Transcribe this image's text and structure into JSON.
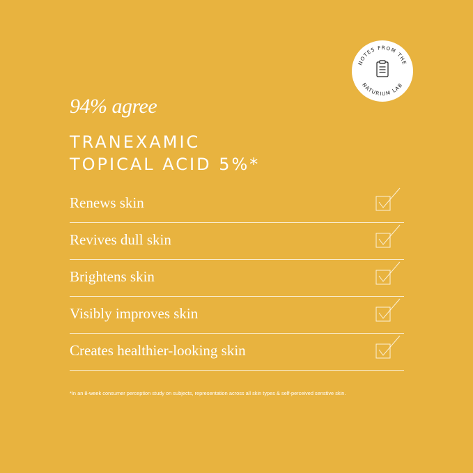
{
  "badge": {
    "top_text": "NOTES FROM THE",
    "bottom_text": "NATURIUM LAB",
    "icon": "clipboard-icon"
  },
  "headline": "94% agree",
  "title_line1": "TRANEXAMIC",
  "title_line2": "TOPICAL ACID 5%*",
  "claims": [
    {
      "label": "Renews skin",
      "icon": "checkbox-checked-icon"
    },
    {
      "label": "Revives dull skin",
      "icon": "checkbox-checked-icon"
    },
    {
      "label": "Brightens skin",
      "icon": "checkbox-checked-icon"
    },
    {
      "label": "Visibly improves skin",
      "icon": "checkbox-checked-icon"
    },
    {
      "label": "Creates healthier-looking skin",
      "icon": "checkbox-checked-icon"
    }
  ],
  "footnote": "*In an 8-week consumer perception study on subjects, representation across all skin types & self-perceived senstive skin.",
  "colors": {
    "background": "#E8B33F",
    "text": "#FFFFFF",
    "badge_bg": "#FFFFFF",
    "badge_text": "#222222"
  }
}
